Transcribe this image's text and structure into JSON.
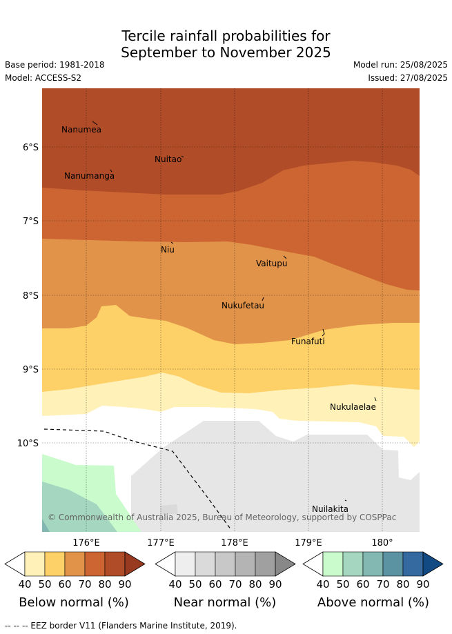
{
  "header": {
    "title_line1": "Tercile rainfall probabilities for",
    "title_line2": "September to November 2025",
    "base_period": "Base period: 1981-2018",
    "model": "Model: ACCESS-S2",
    "model_run": "Model run: 25/08/2025",
    "issued": "Issued: 27/08/2025"
  },
  "map": {
    "lat_labels": [
      "6°S",
      "7°S",
      "8°S",
      "9°S",
      "10°S"
    ],
    "lon_labels": [
      "176°E",
      "177°E",
      "178°E",
      "179°E",
      "180°"
    ],
    "places": [
      "Nanumea",
      "Nuitao",
      "Nanumanga",
      "Niu",
      "Vaitupu",
      "Nukufetau",
      "Funafuti",
      "Nukulaelae",
      "Nuilakita"
    ],
    "copyright": "© Commonwealth of Australia 2025, Bureau of Meteorology, supported by COSPPac"
  },
  "legend": {
    "ticks": [
      "40",
      "50",
      "60",
      "70",
      "80",
      "90"
    ],
    "below": {
      "title": "Below normal (%)",
      "colors": [
        "#fff1b8",
        "#fdd068",
        "#e19349",
        "#cd6533",
        "#b04d28",
        "#973a1f"
      ]
    },
    "near": {
      "title": "Near normal (%)",
      "colors": [
        "#eeeeee",
        "#dadada",
        "#c8c8c8",
        "#b4b4b4",
        "#a0a0a0",
        "#888888"
      ]
    },
    "above": {
      "title": "Above normal (%)",
      "colors": [
        "#c9fbcc",
        "#a4d6c0",
        "#82b8b1",
        "#5b93a2",
        "#346a9f",
        "#124b84"
      ]
    }
  },
  "footer": "--  --  -- EEZ border V11 (Flanders Marine Institute, 2019)."
}
